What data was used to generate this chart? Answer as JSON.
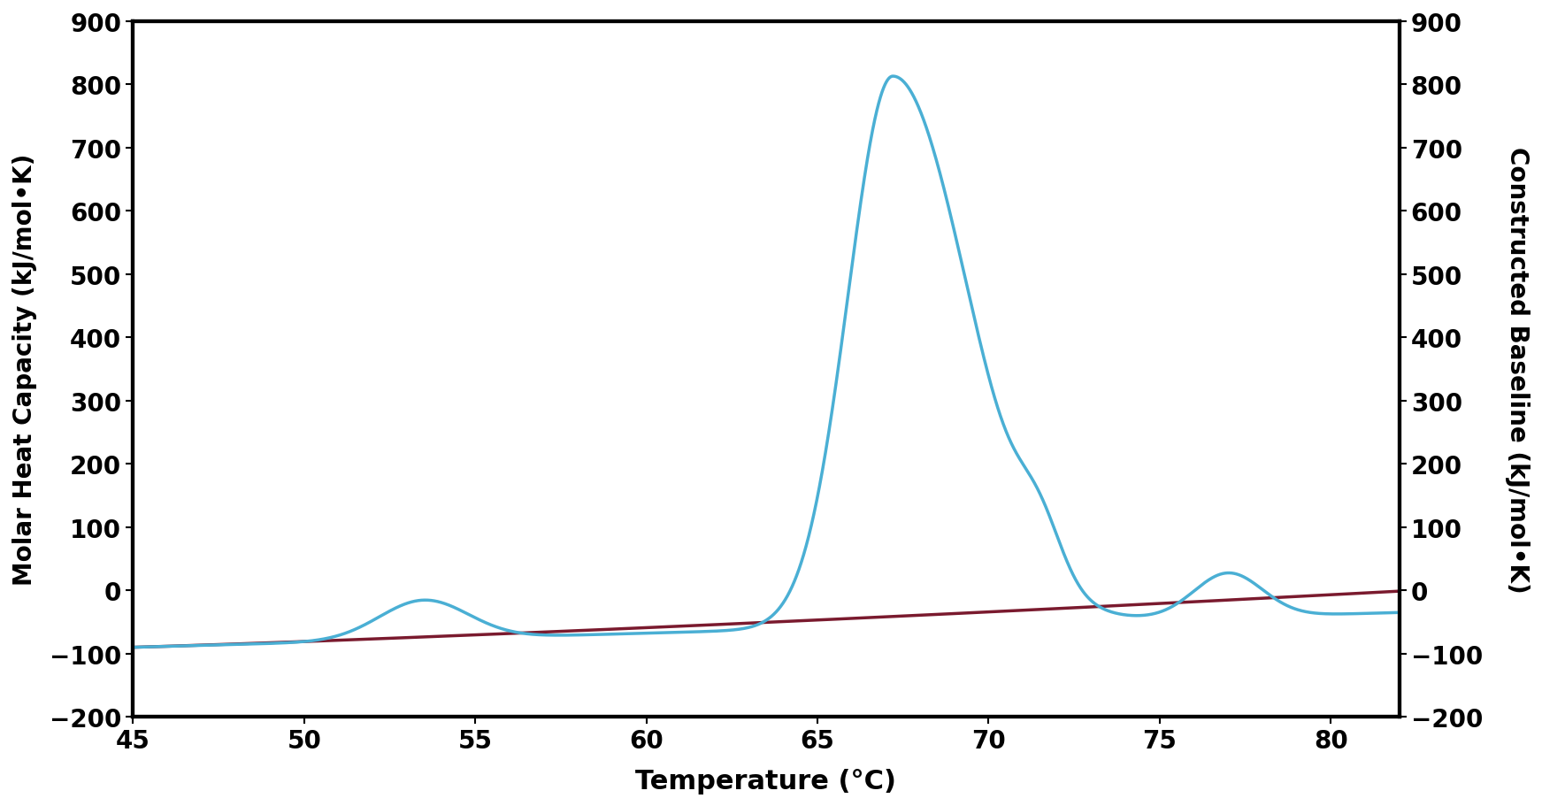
{
  "title": "",
  "xlabel": "Temperature (°C)",
  "ylabel_left": "Molar Heat Capacity (kJ/mol•K)",
  "ylabel_right": "Constructed Baseline (kJ/mol•K)",
  "xlim": [
    45,
    82
  ],
  "ylim": [
    -200,
    900
  ],
  "xticks": [
    45,
    50,
    55,
    60,
    65,
    70,
    75,
    80
  ],
  "yticks": [
    -200,
    -100,
    0,
    100,
    200,
    300,
    400,
    500,
    600,
    700,
    800,
    900
  ],
  "blue_color": "#4aafd4",
  "red_color": "#7a1a2e",
  "background_color": "#ffffff",
  "xlabel_fontsize": 22,
  "ylabel_fontsize": 20,
  "tick_fontsize": 20,
  "spine_linewidth": 3.0,
  "line_linewidth": 2.5,
  "red_linewidth": 2.5
}
